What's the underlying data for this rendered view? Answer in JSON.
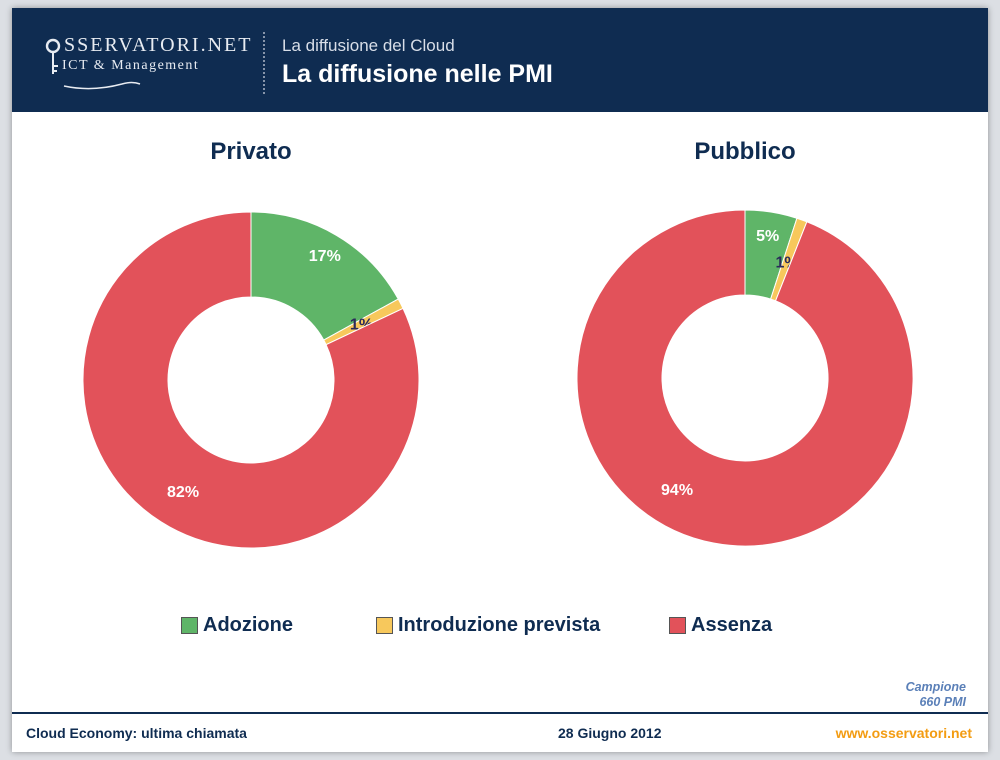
{
  "header": {
    "logo_name": "SSERVATORI.NET",
    "logo_sub": "ICT & Management",
    "subtitle": "La diffusione del Cloud",
    "title": "La diffusione nelle PMI"
  },
  "colors": {
    "header_bg": "#0f2c51",
    "adozione": "#5fb568",
    "introduzione": "#f7c85c",
    "assenza": "#e2525a",
    "footer_link": "#f39c12"
  },
  "chart_data": [
    {
      "type": "pie",
      "title": "Privato",
      "categories": [
        "Adozione",
        "Introduzione prevista",
        "Assenza"
      ],
      "values": [
        17,
        1,
        82
      ],
      "labels": [
        "17%",
        "1%",
        "82%"
      ]
    },
    {
      "type": "pie",
      "title": "Pubblico",
      "categories": [
        "Adozione",
        "Introduzione prevista",
        "Assenza"
      ],
      "values": [
        5,
        1,
        94
      ],
      "labels": [
        "5%",
        "1%",
        "94%"
      ]
    }
  ],
  "legend": {
    "items": [
      {
        "label": "Adozione",
        "color": "#5fb568"
      },
      {
        "label": "Introduzione prevista",
        "color": "#f7c85c"
      },
      {
        "label": "Assenza",
        "color": "#e2525a"
      }
    ]
  },
  "sample": {
    "line1": "Campione",
    "line2": "660 PMI"
  },
  "footer": {
    "left": "Cloud Economy: ultima chiamata",
    "center": "28 Giugno 2012",
    "right": "www.osservatori.net"
  }
}
